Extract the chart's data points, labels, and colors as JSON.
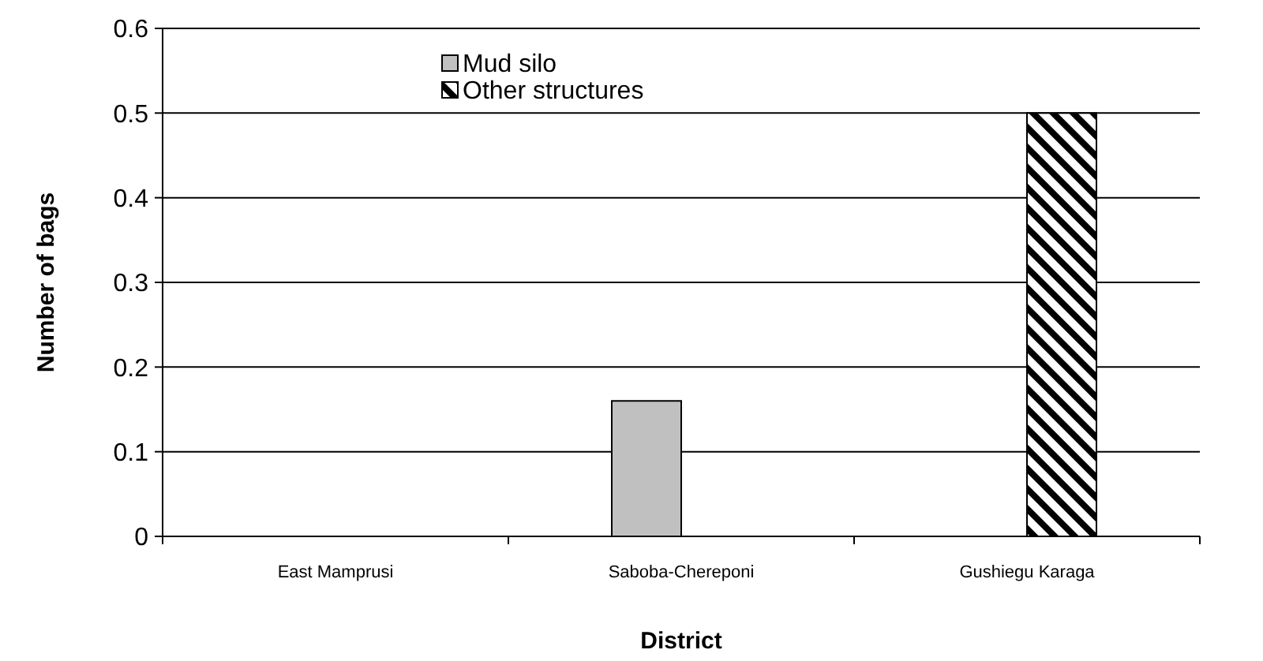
{
  "chart_data": {
    "type": "bar",
    "xlabel": "District",
    "ylabel": "Number of bags",
    "categories": [
      "East Mamprusi",
      "Saboba-Chereponi",
      "Gushiegu Karaga"
    ],
    "series": [
      {
        "name": "Mud silo",
        "color": "#c0c0c0",
        "values": [
          0,
          0.16,
          0
        ]
      },
      {
        "name": "Other structures",
        "color": "#000000",
        "values": [
          0,
          0,
          0.5
        ]
      }
    ],
    "ylim": [
      0,
      0.6
    ],
    "yticks": [
      0,
      0.1,
      0.2,
      0.3,
      0.4,
      0.5,
      0.6
    ],
    "grid": "y",
    "legend": "top"
  }
}
